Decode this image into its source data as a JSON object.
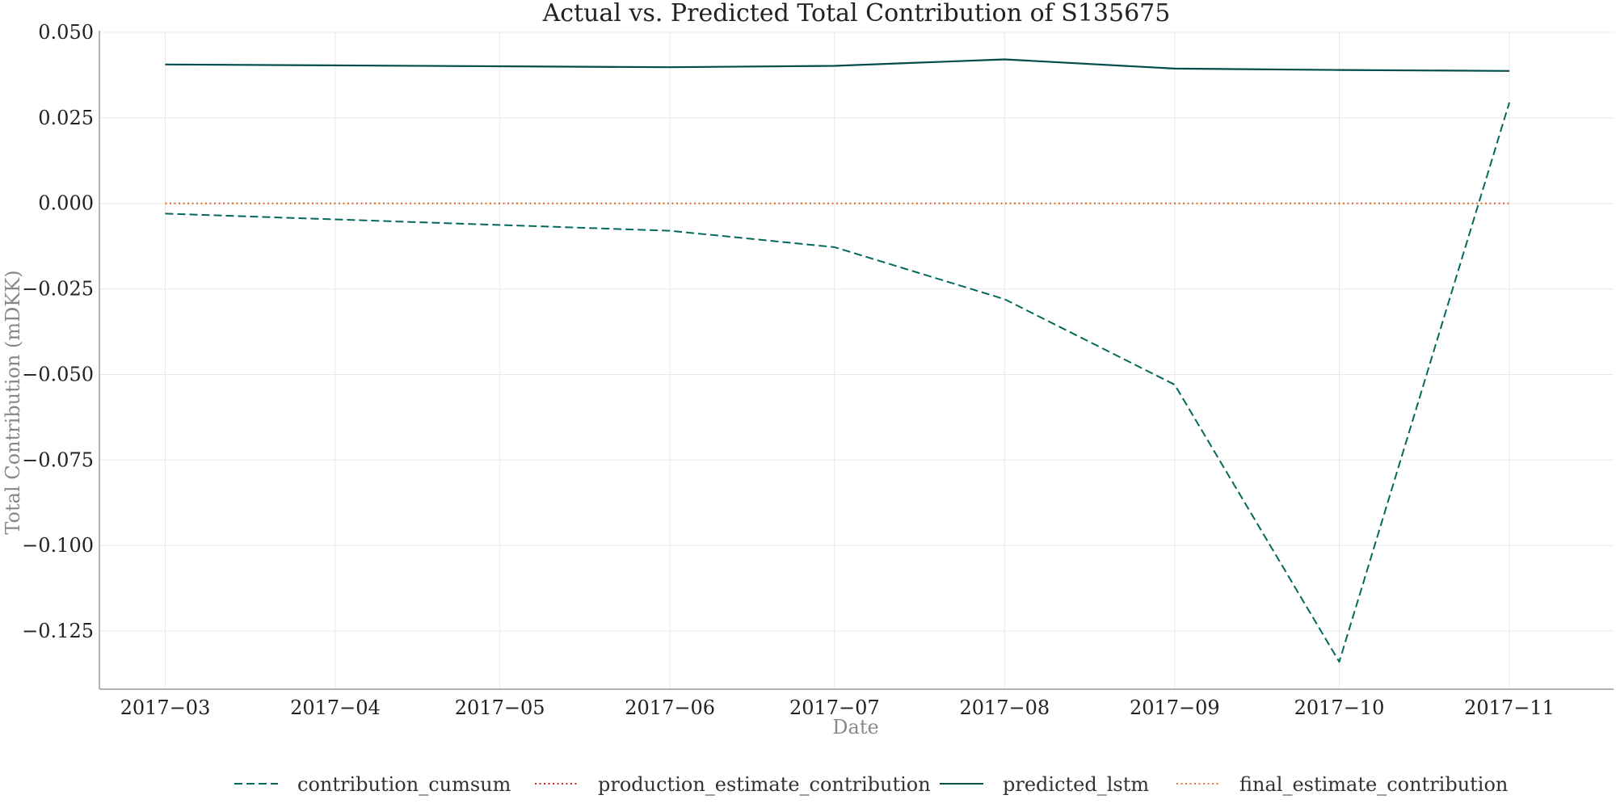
{
  "chart_data": {
    "type": "line",
    "title": "Actual vs. Predicted Total Contribution of S135675",
    "xlabel": "Date",
    "ylabel": "Total Contribution (mDKK)",
    "ylim": [
      -0.142,
      0.05
    ],
    "xlim": [
      "2017-02-17",
      "2017-11-20"
    ],
    "grid": true,
    "legend_position": "bottom-center",
    "x_ticks": [
      "2017-03-01",
      "2017-04-01",
      "2017-05-01",
      "2017-06-01",
      "2017-07-01",
      "2017-08-01",
      "2017-09-01",
      "2017-10-01",
      "2017-11-01"
    ],
    "x_tick_labels": [
      "2017−03",
      "2017−04",
      "2017−05",
      "2017−06",
      "2017−07",
      "2017−08",
      "2017−09",
      "2017−10",
      "2017−11"
    ],
    "y_ticks": [
      0.05,
      0.025,
      0.0,
      -0.025,
      -0.05,
      -0.075,
      -0.1,
      -0.125
    ],
    "y_tick_labels": [
      "0.050",
      "0.025",
      "0.000",
      "−0.025",
      "−0.050",
      "−0.075",
      "−0.100",
      "−0.125"
    ],
    "x": [
      "2017-03-01",
      "2017-06-01",
      "2017-07-01",
      "2017-08-01",
      "2017-09-01",
      "2017-10-01",
      "2017-11-01"
    ],
    "series": [
      {
        "name": "contribution_cumsum",
        "style": "dashed",
        "color": "#00695c",
        "values": [
          -0.003,
          -0.008,
          -0.0128,
          -0.028,
          -0.053,
          -0.134,
          0.0295
        ]
      },
      {
        "name": "production_estimate_contribution",
        "style": "dotted",
        "color": "#c62828",
        "values": [
          0.0,
          0.0,
          0.0,
          0.0,
          0.0,
          0.0,
          0.0
        ]
      },
      {
        "name": "predicted_lstm",
        "style": "solid",
        "color": "#004d4d",
        "values": [
          0.0406,
          0.0398,
          0.0402,
          0.0421,
          0.0394,
          0.039,
          0.0387
        ]
      },
      {
        "name": "final_estimate_contribution",
        "style": "dotted",
        "color": "#e07a3f",
        "values": [
          0.0,
          0.0,
          0.0,
          0.0,
          0.0,
          0.0,
          0.0
        ]
      }
    ]
  }
}
